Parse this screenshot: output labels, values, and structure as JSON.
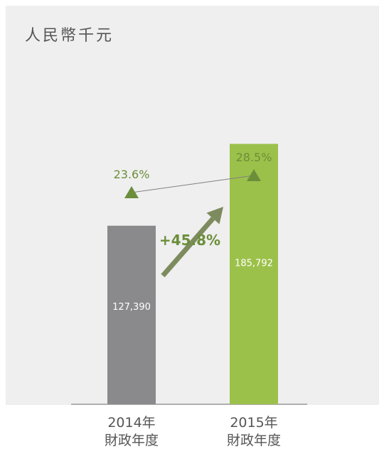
{
  "header": {
    "unit_label": "人民幣千元"
  },
  "colors": {
    "panel_bg": "#efefef",
    "bar_2014": "#8a8a8c",
    "bar_2015": "#9cc14a",
    "growth_arrow": "#7d8b5e",
    "margin_green": "#6b8e3a",
    "text_gray": "#555555"
  },
  "chart_data": {
    "type": "bar",
    "categories": [
      "2014年財政年度",
      "2015年財政年度"
    ],
    "category_lines": [
      [
        "2014年",
        "財政年度"
      ],
      [
        "2015年",
        "財政年度"
      ]
    ],
    "values": [
      127390,
      185792
    ],
    "value_labels": [
      "127,390",
      "185,792"
    ],
    "unit": "人民幣千元",
    "ylim": [
      0,
      220000
    ],
    "grid": false,
    "annotations": {
      "growth": {
        "label": "+45.8%",
        "value": 45.8
      },
      "margin_line": {
        "values": [
          23.6,
          28.5
        ],
        "labels": [
          "23.6%",
          "28.5%"
        ],
        "marker": "triangle-up"
      }
    }
  }
}
